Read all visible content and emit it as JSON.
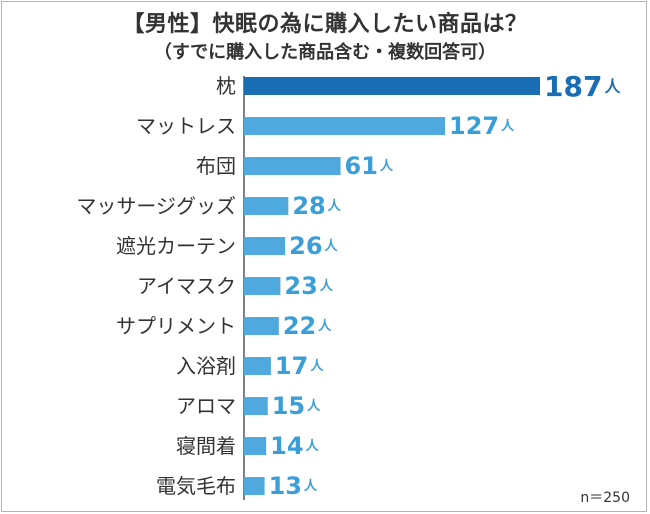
{
  "chart_data": {
    "type": "bar",
    "orientation": "horizontal",
    "title": "【男性】快眠の為に購入したい商品は？",
    "subtitle": "（すでに購入した商品含む・複数回答可）",
    "categories": [
      "枕",
      "マットレス",
      "布団",
      "マッサージグッズ",
      "遮光カーテン",
      "アイマスク",
      "サプリメント",
      "入浴剤",
      "アロマ",
      "寝間着",
      "電気毛布"
    ],
    "values": [
      187,
      127,
      61,
      28,
      26,
      23,
      22,
      17,
      15,
      14,
      13
    ],
    "value_unit": "人",
    "xlim": [
      0,
      187
    ],
    "grid": false,
    "highlight_index": 0,
    "colors": {
      "highlight_bar": "#1a6db3",
      "bar": "#4fa9dc",
      "highlight_label": "#1a6db3",
      "label": "#3a9fd8",
      "category_text": "#333333",
      "axis": "#555555"
    },
    "sample_size": "n＝250"
  }
}
